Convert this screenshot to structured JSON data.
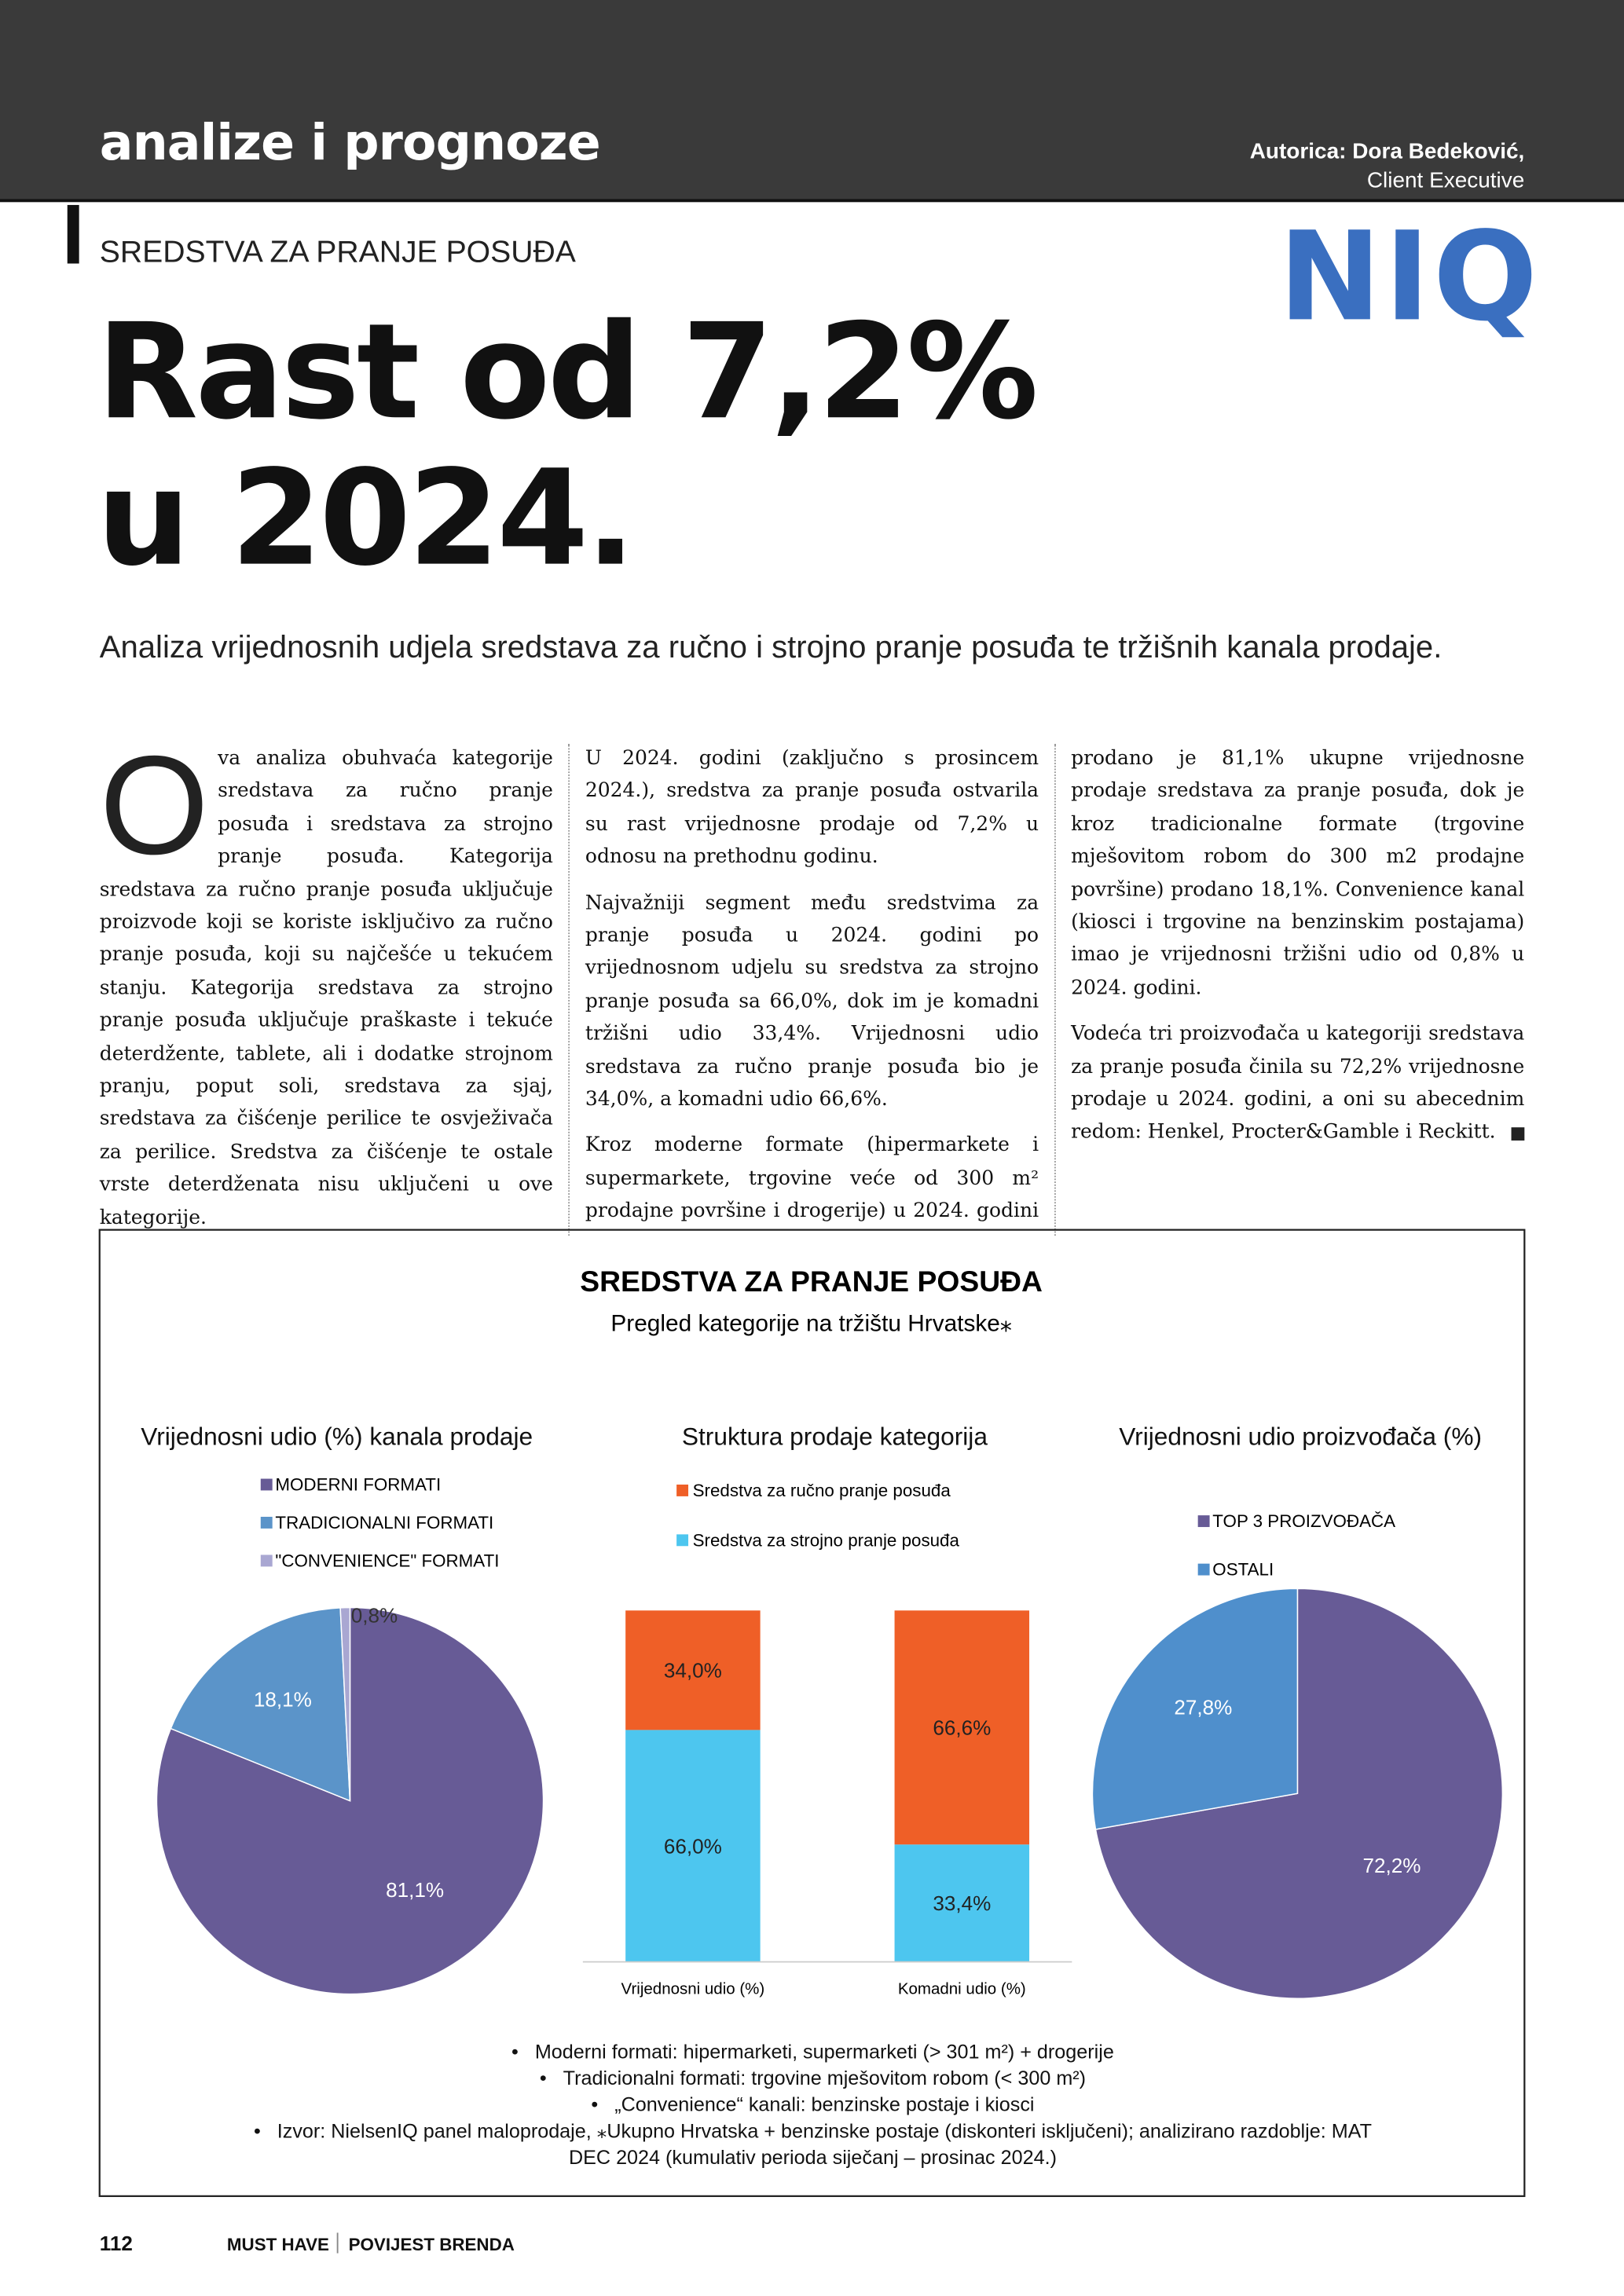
{
  "header": {
    "section": "analize i prognoze",
    "author": "Autorica: Dora Bedeković,",
    "role": "Client Executive"
  },
  "logo": "NIQ",
  "kicker": "SREDSTVA ZA PRANJE POSUĐA",
  "title": {
    "lines": [
      "Rast od 7,2%",
      "u 2024."
    ]
  },
  "lead": "Analiza vrijednosnih udjela sredstava za ručno i strojno pranje posuđa te tržišnih kanala prodaje.",
  "article": {
    "drop_cap": "O",
    "paragraphs": [
      "va analiza obuhvaća kategorije sredstava za ručno pranje posuđa i sredstava za strojno pranje posuđa. Kategorija sredstava za ručno pranje posuđa uključuje proizvode koji se koriste isključivo za ručno pranje posuđa, koji su najčešće u tekućem stanju. Kategorija sredstava za strojno pranje posuđa uključuje praškaste i tekuće deterdžente, tablete, ali i dodatke strojnom pranju, poput soli, sredstava za sjaj, sredstava za čišćenje perilice te osvježivača za perilice. Sredstva za čišćenje te ostale vrste deterdženata nisu uključeni u ove kategorije.",
      "U 2024. godini (zaključno s prosincem 2024.), sredstva za pranje posuđa ostvarila su rast vrijednosne prodaje od 7,2% u odnosu na prethodnu godinu.",
      "Najvažniji segment među sredstvima za pranje posuđa u 2024. godini po vrijednosnom udjelu su sredstva za strojno pranje posuđa sa 66,0%, dok im je komadni tržišni udio 33,4%. Vrijednosni udio sredstava za ručno pranje posuđa bio je 34,0%, a komadni udio 66,6%.",
      "Kroz moderne formate (hipermarkete i supermarkete, trgovine veće od 300 m² prodajne površine i drogerije) u 2024. godini prodano je 81,1% ukupne vrijednosne prodaje sredstava za pranje posuđa, dok je kroz tradicionalne formate (trgovine mješovitom robom do 300 m2 prodajne površine) prodano 18,1%. Convenience kanal (kiosci i trgovine na benzinskim postajama) imao je vrijednosni tržišni udio od 0,8% u 2024. godini.",
      "Vodeća tri proizvođača u kategoriji sredstava za pranje posuđa činila su 72,2% vrijednosne prodaje u 2024. godini, a oni su abecednim redom: Henkel, Procter&Gamble i Reckitt."
    ]
  },
  "chart_box": {
    "title": "SREDSTVA ZA PRANJE POSUĐA",
    "subtitle": "Pregled kategorije na tržištu Hrvatske⁎",
    "notes": [
      "Moderni formati: hipermarketi, supermarketi (> 301 m²) + drogerije",
      "Tradicionalni formati: trgovine mješovitom robom (< 300 m²)",
      "„Convenience“ kanali: benzinske postaje i kiosci",
      "Izvor: NielsenIQ panel maloprodaje, ⁎Ukupno Hrvatska + benzinske postaje (diskonteri isključeni); analizirano razdoblje: MAT DEC 2024 (kumulativ perioda siječanj – prosinac 2024.)"
    ]
  },
  "chart_data": [
    {
      "type": "pie",
      "title": "Vrijednosni udio (%) kanala prodaje",
      "categories": [
        "MODERNI FORMATI",
        "TRADICIONALNI FORMATI",
        "\"CONVENIENCE\" FORMATI"
      ],
      "values": [
        81.1,
        18.1,
        0.8
      ],
      "value_labels": [
        "81,1%",
        "18,1%",
        "0,8%"
      ],
      "colors": [
        "#675b96",
        "#5b94c9",
        "#a9a7d2"
      ]
    },
    {
      "type": "stacked-bar",
      "title": "Struktura prodaje kategorija",
      "categories": [
        "Vrijednosni udio (%)",
        "Komadni udio (%)"
      ],
      "series": [
        {
          "name": "Sredstva za ručno pranje posuđa",
          "color": "#ef5f27",
          "values": [
            34.0,
            66.6
          ],
          "value_labels": [
            "34,0%",
            "66,6%"
          ]
        },
        {
          "name": "Sredstva za strojno pranje posuđa",
          "color": "#4dc6ef",
          "values": [
            66.0,
            33.4
          ],
          "value_labels": [
            "66,0%",
            "33,4%"
          ]
        }
      ],
      "ylim": [
        0,
        100
      ]
    },
    {
      "type": "pie",
      "title": "Vrijednosni udio proizvođača (%)",
      "categories": [
        "TOP 3 PROIZVOĐAČA",
        "OSTALI"
      ],
      "values": [
        72.2,
        27.8
      ],
      "value_labels": [
        "72,2%",
        "27,8%"
      ],
      "colors": [
        "#675b96",
        "#4f8fcc"
      ]
    }
  ],
  "footer": {
    "page": "112",
    "magazine": "MUST HAVE",
    "section": "POVIJEST BRENDA"
  }
}
